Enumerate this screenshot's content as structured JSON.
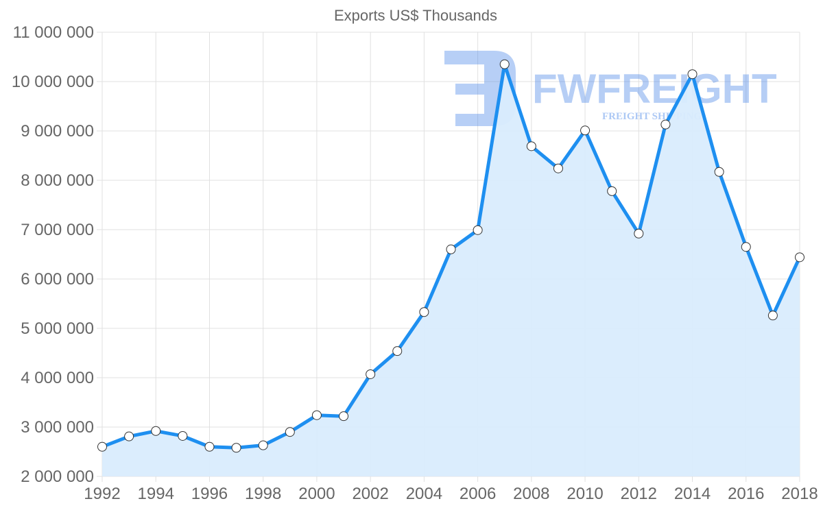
{
  "chart_data": {
    "type": "area",
    "title": "Exports US$ Thousands",
    "xlabel": "",
    "ylabel": "",
    "categories": [
      "1992",
      "1993",
      "1994",
      "1995",
      "1996",
      "1997",
      "1998",
      "1999",
      "2000",
      "2001",
      "2002",
      "2003",
      "2004",
      "2005",
      "2006",
      "2007",
      "2008",
      "2009",
      "2010",
      "2011",
      "2012",
      "2013",
      "2014",
      "2015",
      "2016",
      "2017",
      "2018"
    ],
    "series": [
      {
        "name": "Exports US$ Thousands",
        "values": [
          2600000,
          2810000,
          2920000,
          2820000,
          2600000,
          2580000,
          2630000,
          2900000,
          3240000,
          3220000,
          4070000,
          4540000,
          5330000,
          6600000,
          6990000,
          10350000,
          8690000,
          8240000,
          9010000,
          7780000,
          6920000,
          9130000,
          10150000,
          8170000,
          6650000,
          5260000,
          6440000
        ]
      }
    ],
    "ylim": [
      2000000,
      11000000
    ],
    "yticks": [
      "2 000 000",
      "3 000 000",
      "4 000 000",
      "5 000 000",
      "6 000 000",
      "7 000 000",
      "8 000 000",
      "9 000 000",
      "10 000 000",
      "11 000 000"
    ],
    "xticks": [
      "1992",
      "1994",
      "1996",
      "1998",
      "2000",
      "2002",
      "2004",
      "2006",
      "2008",
      "2010",
      "2012",
      "2014",
      "2016",
      "2018"
    ],
    "grid": true,
    "legend": "none",
    "colors": {
      "line": "#1e8ff0",
      "fill": "#d9ecfd",
      "point_fill": "#ffffff",
      "point_stroke": "#333333",
      "grid": "#e0e0e0",
      "text": "#666666"
    }
  },
  "watermark": {
    "brand": "FWFREIGHT",
    "tagline": "FREIGHT SHIPPING"
  }
}
